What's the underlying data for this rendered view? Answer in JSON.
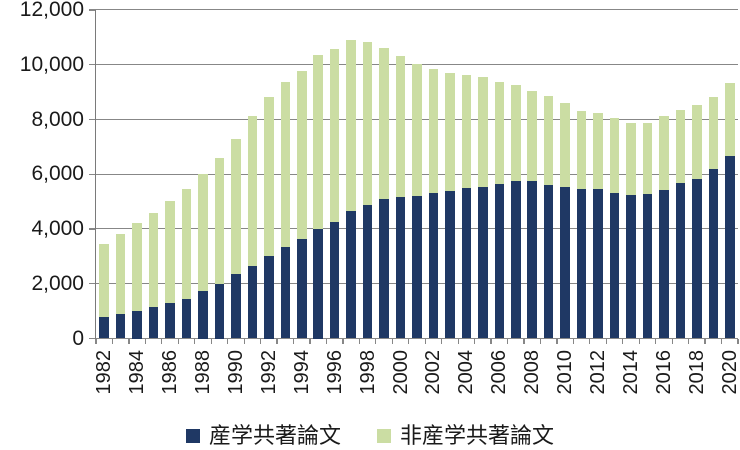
{
  "chart_data": {
    "type": "bar",
    "stacked": true,
    "title": "",
    "xlabel": "",
    "ylabel": "",
    "x": [
      1982,
      1983,
      1984,
      1985,
      1986,
      1987,
      1988,
      1989,
      1990,
      1991,
      1992,
      1993,
      1994,
      1995,
      1996,
      1997,
      1998,
      1999,
      2000,
      2001,
      2002,
      2003,
      2004,
      2005,
      2006,
      2007,
      2008,
      2009,
      2010,
      2011,
      2012,
      2013,
      2014,
      2015,
      2016,
      2017,
      2018,
      2019,
      2020
    ],
    "series": [
      {
        "name": "産学共著論文",
        "color": "#1f3864",
        "values": [
          800,
          900,
          1000,
          1150,
          1300,
          1450,
          1750,
          2000,
          2350,
          2650,
          3000,
          3350,
          3650,
          4000,
          4270,
          4650,
          4870,
          5090,
          5180,
          5210,
          5330,
          5370,
          5480,
          5540,
          5660,
          5770,
          5760,
          5610,
          5540,
          5460,
          5460,
          5300,
          5230,
          5280,
          5440,
          5680,
          5830,
          6190,
          6650
        ]
      },
      {
        "name": "非産学共著論文",
        "color": "#cbdda3",
        "values": [
          2650,
          2900,
          3230,
          3430,
          3720,
          4010,
          4270,
          4590,
          4950,
          5470,
          5810,
          6020,
          6130,
          6340,
          6320,
          6250,
          5960,
          5540,
          5150,
          4800,
          4530,
          4330,
          4160,
          4020,
          3710,
          3490,
          3290,
          3240,
          3060,
          2840,
          2780,
          2740,
          2650,
          2590,
          2690,
          2680,
          2700,
          2640,
          2680
        ]
      }
    ],
    "ylim": [
      0,
      12000
    ],
    "ytick_interval": 2000,
    "ytick_labels": [
      "0",
      "2,000",
      "4,000",
      "6,000",
      "8,000",
      "10,000",
      "12,000"
    ],
    "xtick_labels": [
      "1982",
      "1984",
      "1986",
      "1988",
      "1990",
      "1992",
      "1994",
      "1996",
      "1998",
      "2000",
      "2002",
      "2004",
      "2006",
      "2008",
      "2010",
      "2012",
      "2014",
      "2016",
      "2018",
      "2020"
    ],
    "grid": true,
    "legend_position": "bottom",
    "gridline_color": "#878787",
    "text_color": "#1a1a1a"
  }
}
